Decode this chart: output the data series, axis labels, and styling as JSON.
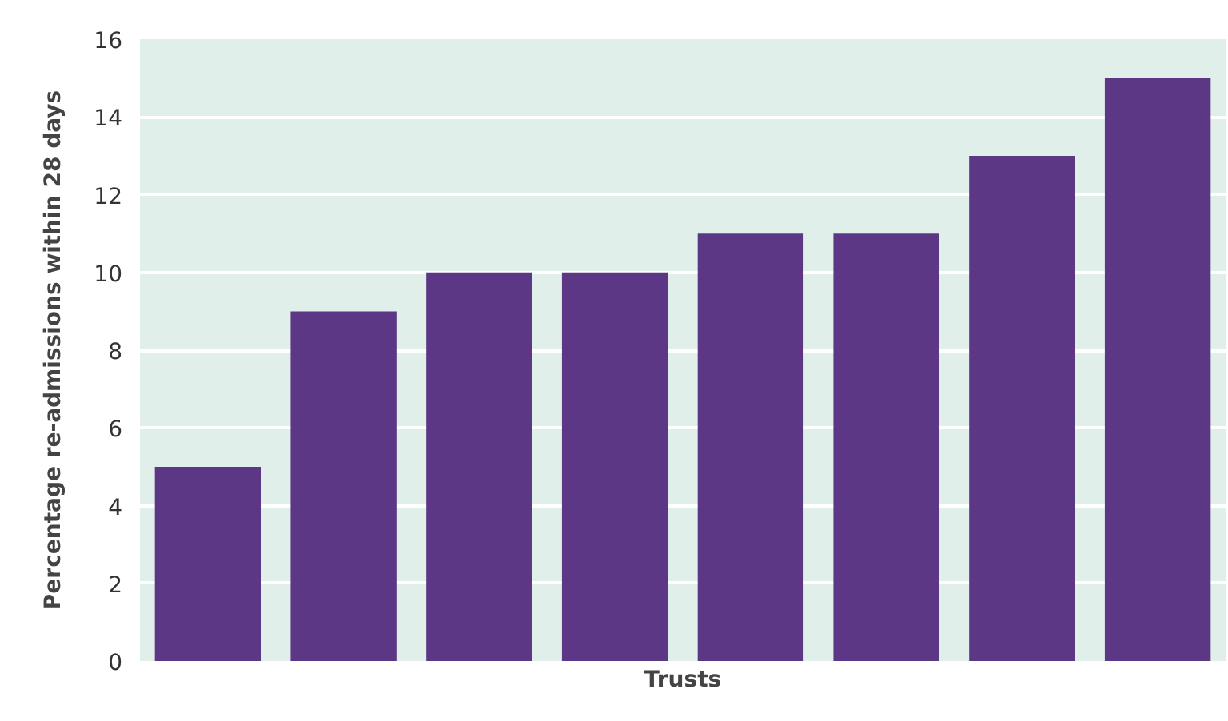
{
  "chart_data": {
    "type": "bar",
    "xlabel": "Trusts",
    "ylabel": "Percentage re-admissions within 28 days",
    "categories": [
      null,
      null,
      null,
      null,
      null,
      null,
      null,
      null
    ],
    "values": [
      5,
      9,
      10,
      10,
      11,
      11,
      13,
      15
    ],
    "color": "#5c3785",
    "ylim": [
      0,
      16
    ],
    "yticks": [
      0,
      2,
      4,
      6,
      8,
      10,
      12,
      14,
      16
    ],
    "grid": "y",
    "tick_labels": "y"
  }
}
